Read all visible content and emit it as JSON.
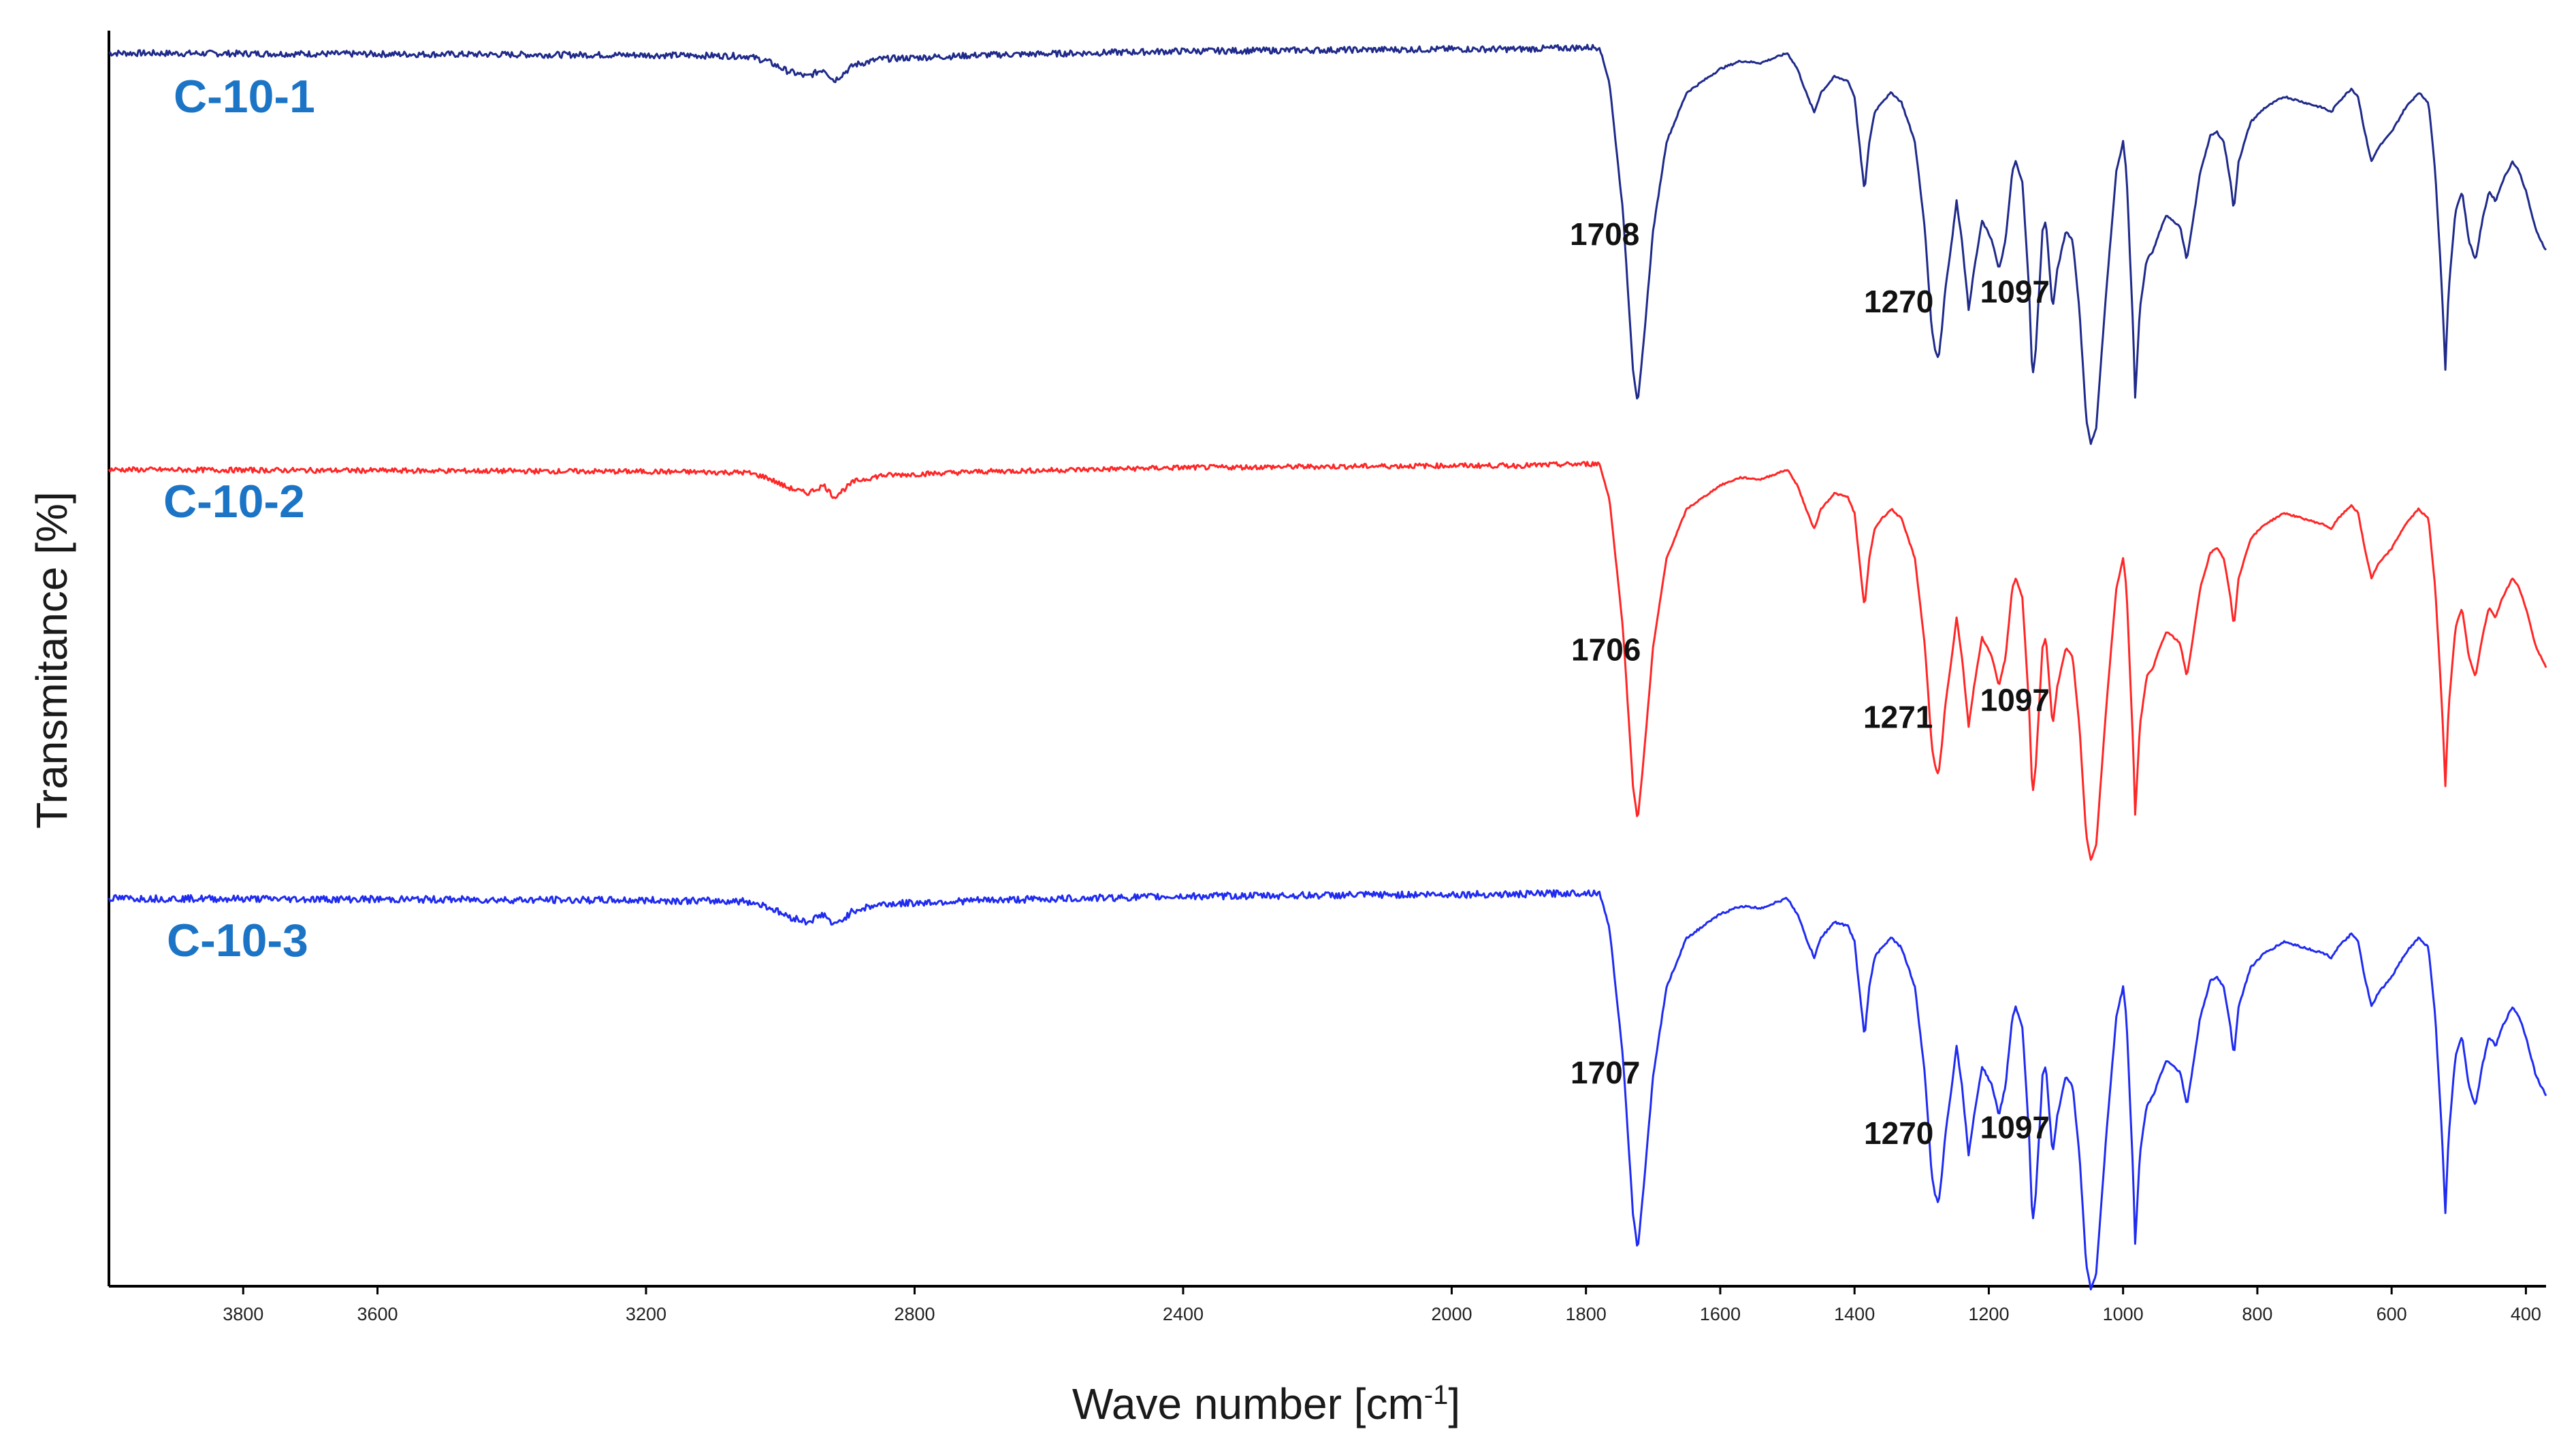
{
  "chart_data": {
    "type": "line",
    "title": "",
    "xlabel": "Wave number [cm",
    "xlabel_sup": "-1",
    "xlabel_suffix": "]",
    "ylabel": "Transmitance [%]",
    "xlim": [
      4000,
      370
    ],
    "x_reversed": true,
    "y_ticks_shown": false,
    "grid": false,
    "x_ticks": [
      {
        "value": 3800,
        "label": "3800"
      },
      {
        "value": 3600,
        "label": "3600"
      },
      {
        "value": 3200,
        "label": "3200"
      },
      {
        "value": 2800,
        "label": "2800"
      },
      {
        "value": 2400,
        "label": "2400"
      },
      {
        "value": 2000,
        "label": "2000"
      },
      {
        "value": 1800,
        "label": "1800"
      },
      {
        "value": 1600,
        "label": "1600"
      },
      {
        "value": 1400,
        "label": "1400"
      },
      {
        "value": 1200,
        "label": "1200"
      },
      {
        "value": 1000,
        "label": "1000"
      },
      {
        "value": 800,
        "label": "800"
      },
      {
        "value": 600,
        "label": "600"
      },
      {
        "value": 400,
        "label": "400"
      }
    ],
    "shape_note": "Shared spectral shape (transmittance, arbitrary units, 0 = baseline, negative = absorption). Each series is drawn with a vertical offset.",
    "shape": [
      [
        4000,
        0
      ],
      [
        3600,
        -0.5
      ],
      [
        3200,
        -1
      ],
      [
        3050,
        -1.5
      ],
      [
        3020,
        -4
      ],
      [
        2990,
        -9
      ],
      [
        2960,
        -12
      ],
      [
        2935,
        -8
      ],
      [
        2920,
        -14
      ],
      [
        2890,
        -6
      ],
      [
        2850,
        -3
      ],
      [
        2700,
        -1
      ],
      [
        2400,
        1
      ],
      [
        2000,
        2
      ],
      [
        1900,
        2
      ],
      [
        1780,
        3
      ],
      [
        1765,
        -15
      ],
      [
        1745,
        -80
      ],
      [
        1730,
        -160
      ],
      [
        1723,
        -178
      ],
      [
        1715,
        -150
      ],
      [
        1700,
        -90
      ],
      [
        1680,
        -45
      ],
      [
        1650,
        -20
      ],
      [
        1600,
        -8
      ],
      [
        1570,
        -4
      ],
      [
        1540,
        -5
      ],
      [
        1500,
        0
      ],
      [
        1485,
        -8
      ],
      [
        1470,
        -22
      ],
      [
        1460,
        -30
      ],
      [
        1450,
        -20
      ],
      [
        1430,
        -12
      ],
      [
        1410,
        -14
      ],
      [
        1400,
        -22
      ],
      [
        1390,
        -55
      ],
      [
        1385,
        -70
      ],
      [
        1378,
        -45
      ],
      [
        1370,
        -30
      ],
      [
        1360,
        -25
      ],
      [
        1345,
        -20
      ],
      [
        1330,
        -25
      ],
      [
        1310,
        -45
      ],
      [
        1295,
        -90
      ],
      [
        1285,
        -140
      ],
      [
        1280,
        -150
      ],
      [
        1275,
        -155
      ],
      [
        1270,
        -140
      ],
      [
        1265,
        -120
      ],
      [
        1255,
        -95
      ],
      [
        1248,
        -75
      ],
      [
        1240,
        -95
      ],
      [
        1230,
        -130
      ],
      [
        1222,
        -110
      ],
      [
        1210,
        -85
      ],
      [
        1195,
        -95
      ],
      [
        1185,
        -110
      ],
      [
        1175,
        -95
      ],
      [
        1165,
        -60
      ],
      [
        1160,
        -55
      ],
      [
        1150,
        -65
      ],
      [
        1140,
        -120
      ],
      [
        1135,
        -165
      ],
      [
        1130,
        -150
      ],
      [
        1120,
        -90
      ],
      [
        1115,
        -85
      ],
      [
        1105,
        -130
      ],
      [
        1098,
        -110
      ],
      [
        1085,
        -90
      ],
      [
        1075,
        -95
      ],
      [
        1065,
        -130
      ],
      [
        1055,
        -185
      ],
      [
        1048,
        -198
      ],
      [
        1040,
        -190
      ],
      [
        1025,
        -120
      ],
      [
        1010,
        -60
      ],
      [
        1000,
        -45
      ],
      [
        995,
        -60
      ],
      [
        985,
        -140
      ],
      [
        982,
        -175
      ],
      [
        975,
        -130
      ],
      [
        965,
        -105
      ],
      [
        955,
        -100
      ],
      [
        945,
        -90
      ],
      [
        935,
        -82
      ],
      [
        925,
        -85
      ],
      [
        915,
        -88
      ],
      [
        905,
        -105
      ],
      [
        898,
        -90
      ],
      [
        885,
        -60
      ],
      [
        870,
        -42
      ],
      [
        860,
        -40
      ],
      [
        850,
        -45
      ],
      [
        840,
        -65
      ],
      [
        835,
        -80
      ],
      [
        828,
        -55
      ],
      [
        810,
        -35
      ],
      [
        790,
        -28
      ],
      [
        760,
        -22
      ],
      [
        700,
        -28
      ],
      [
        690,
        -30
      ],
      [
        680,
        -25
      ],
      [
        660,
        -18
      ],
      [
        650,
        -22
      ],
      [
        640,
        -40
      ],
      [
        630,
        -55
      ],
      [
        620,
        -48
      ],
      [
        600,
        -40
      ],
      [
        580,
        -28
      ],
      [
        560,
        -20
      ],
      [
        545,
        -25
      ],
      [
        535,
        -60
      ],
      [
        525,
        -120
      ],
      [
        520,
        -160
      ],
      [
        515,
        -120
      ],
      [
        505,
        -80
      ],
      [
        495,
        -70
      ],
      [
        485,
        -95
      ],
      [
        475,
        -105
      ],
      [
        465,
        -85
      ],
      [
        455,
        -70
      ],
      [
        445,
        -75
      ],
      [
        435,
        -65
      ],
      [
        420,
        -55
      ],
      [
        410,
        -60
      ],
      [
        400,
        -70
      ],
      [
        385,
        -90
      ],
      [
        370,
        -100
      ]
    ],
    "series": [
      {
        "name": "C-10-1",
        "color": "#1f2a8a",
        "label_color": "#1b74c5",
        "noise": 1.0,
        "peaks": [
          {
            "x": 1708,
            "label": "1708"
          },
          {
            "x": 1270,
            "label": "1270"
          },
          {
            "x": 1097,
            "label": "1097"
          }
        ]
      },
      {
        "name": "C-10-2",
        "color": "#ff2626",
        "label_color": "#1b74c5",
        "noise": 0.8,
        "peaks": [
          {
            "x": 1706,
            "label": "1706"
          },
          {
            "x": 1271,
            "label": "1271"
          },
          {
            "x": 1097,
            "label": "1097"
          }
        ]
      },
      {
        "name": "C-10-3",
        "color": "#1f2bf0",
        "label_color": "#1b74c5",
        "noise": 1.1,
        "peaks": [
          {
            "x": 1707,
            "label": "1707"
          },
          {
            "x": 1270,
            "label": "1270"
          },
          {
            "x": 1097,
            "label": "1097"
          }
        ]
      }
    ]
  }
}
